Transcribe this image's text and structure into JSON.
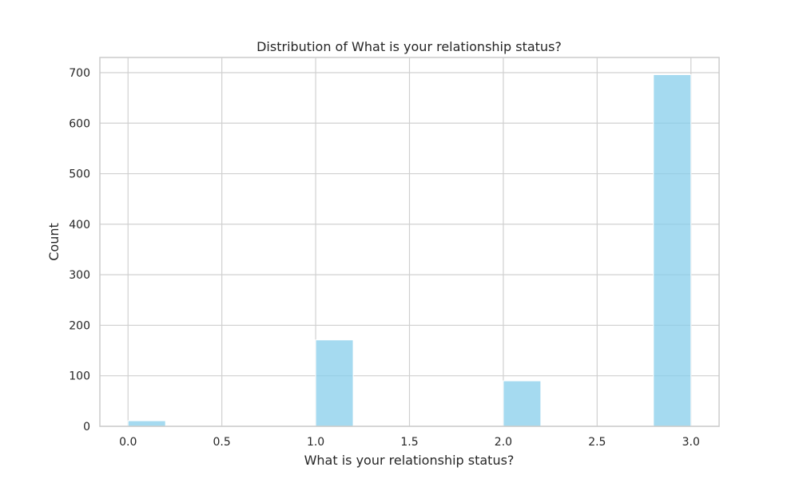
{
  "chart_data": {
    "type": "bar",
    "title": "Distribution of What is your relationship status?",
    "xlabel": "What is your relationship status?",
    "ylabel": "Count",
    "xlim": [
      -0.15,
      3.15
    ],
    "ylim": [
      0,
      730
    ],
    "xticks": [
      0.0,
      0.5,
      1.0,
      1.5,
      2.0,
      2.5,
      3.0
    ],
    "xtick_labels": [
      "0.0",
      "0.5",
      "1.0",
      "1.5",
      "2.0",
      "2.5",
      "3.0"
    ],
    "yticks": [
      0,
      100,
      200,
      300,
      400,
      500,
      600,
      700
    ],
    "ytick_labels": [
      "0",
      "100",
      "200",
      "300",
      "400",
      "500",
      "600",
      "700"
    ],
    "bars": [
      {
        "x_start": 0.0,
        "x_end": 0.2,
        "value": 11
      },
      {
        "x_start": 1.0,
        "x_end": 1.2,
        "value": 171
      },
      {
        "x_start": 2.0,
        "x_end": 2.2,
        "value": 90
      },
      {
        "x_start": 2.8,
        "x_end": 3.0,
        "value": 696
      }
    ],
    "grid": true,
    "bar_color": "#87ceeb"
  }
}
